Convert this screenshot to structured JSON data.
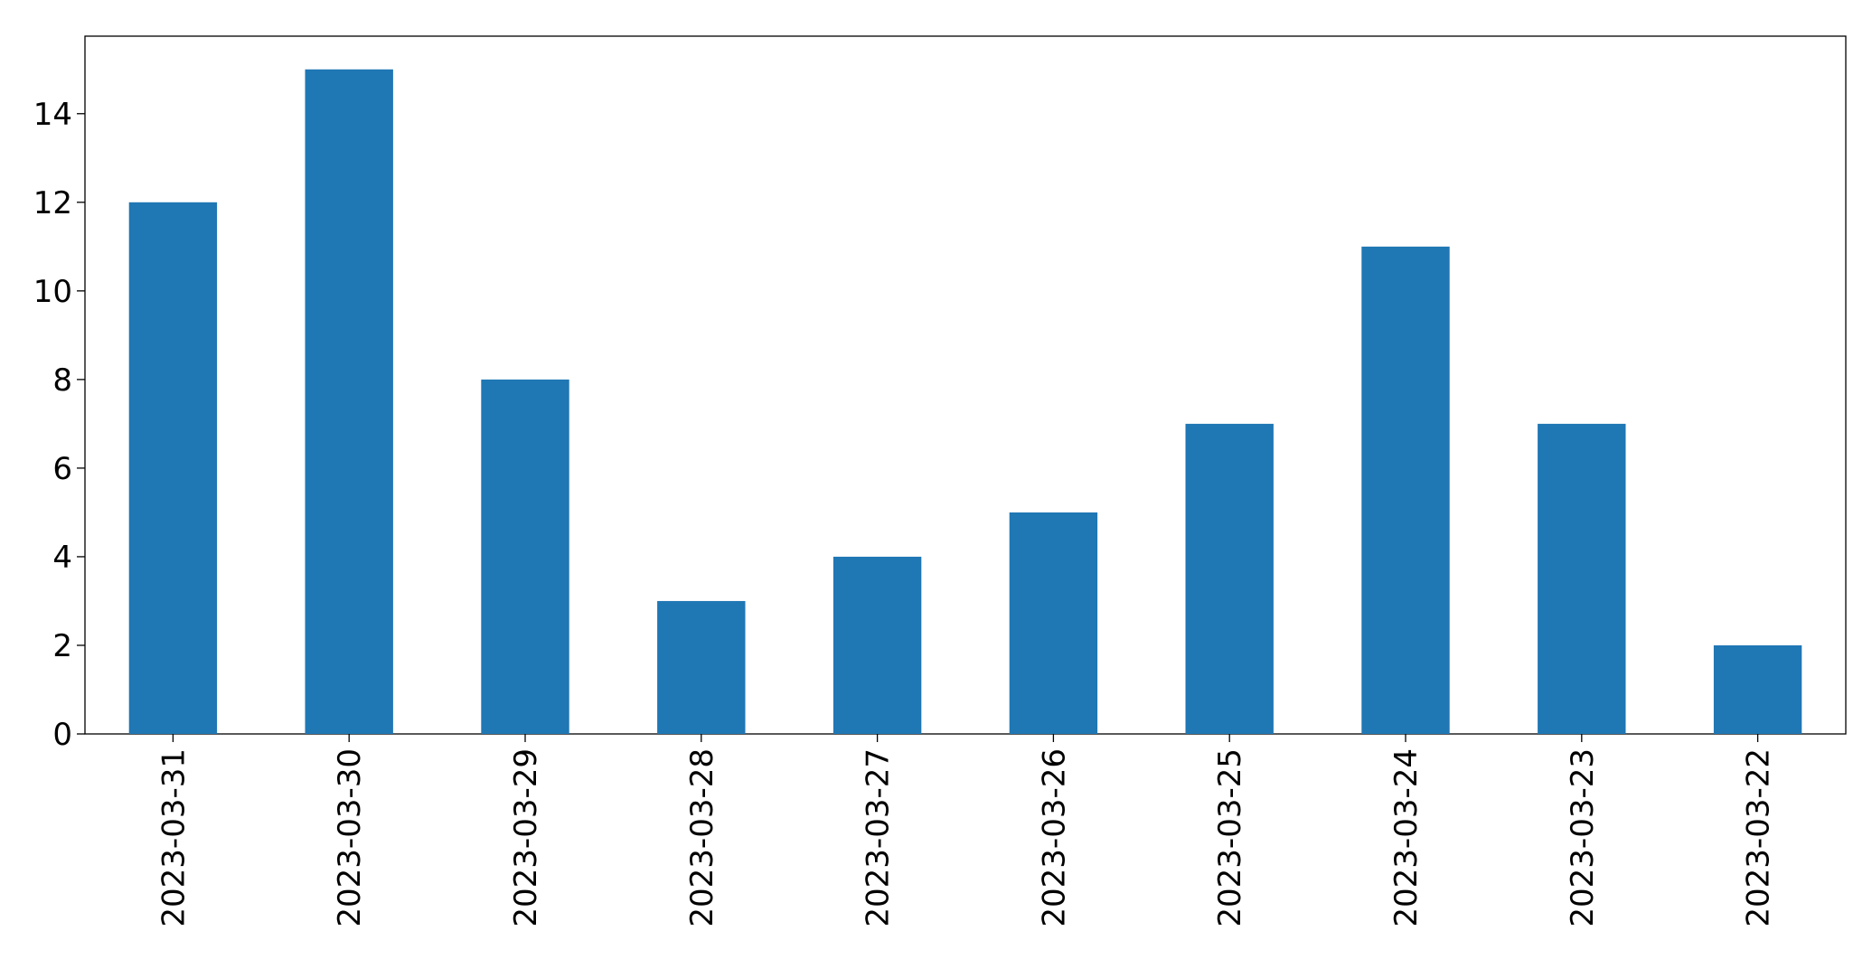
{
  "chart_data": {
    "type": "bar",
    "categories": [
      "2023-03-31",
      "2023-03-30",
      "2023-03-29",
      "2023-03-28",
      "2023-03-27",
      "2023-03-26",
      "2023-03-25",
      "2023-03-24",
      "2023-03-23",
      "2023-03-22"
    ],
    "values": [
      12,
      15,
      8,
      3,
      4,
      5,
      7,
      11,
      7,
      2
    ],
    "color": "#1f77b4",
    "ylim": [
      0,
      15.75
    ],
    "yticks": [
      0,
      2,
      4,
      6,
      8,
      10,
      12,
      14
    ],
    "grid": false
  }
}
